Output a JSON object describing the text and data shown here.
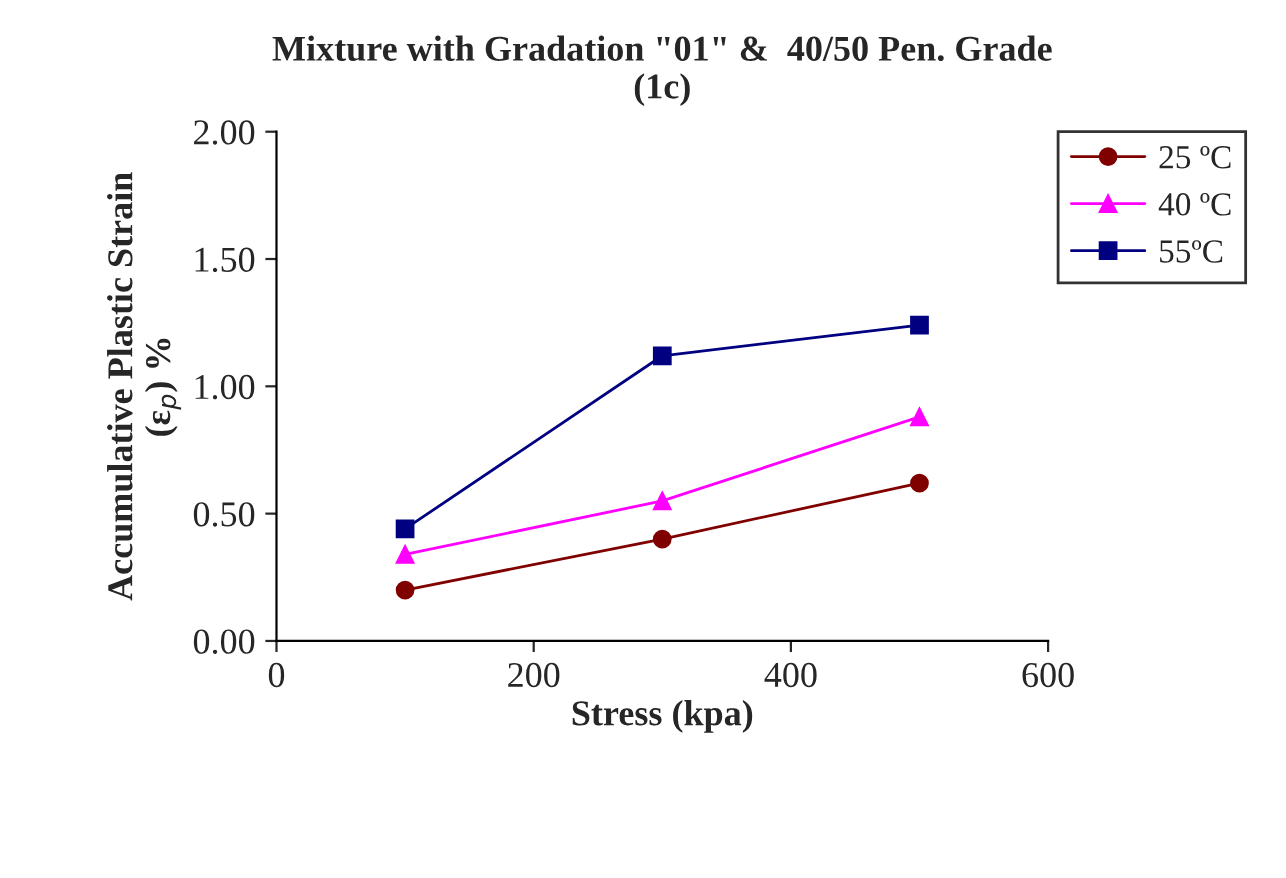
{
  "chart_data": {
    "type": "line",
    "title": "Mixture with Gradation \"01\" &  40/50 Pen. Grade\n(1c)",
    "xlabel": "Stress (kpa)",
    "ylabel": "Accumulative Plastic Strain\n(ε$_{p}$) %",
    "xlim": [
      0,
      600
    ],
    "xticks": [
      0,
      200,
      400,
      600
    ],
    "ylim": [
      0,
      2
    ],
    "yticks": [
      {
        "value": 0,
        "label": "0.00"
      },
      {
        "value": 0.5,
        "label": "0.50"
      },
      {
        "value": 1,
        "label": "1.00"
      },
      {
        "value": 1.5,
        "label": "1.50"
      },
      {
        "value": 2,
        "label": "2.00"
      }
    ],
    "grid": false,
    "legend": "top right",
    "series": [
      {
        "name": "25 ºC",
        "color": "#800000",
        "marker": "circle",
        "x": [
          100,
          300,
          500
        ],
        "values": [
          0.2,
          0.4,
          0.62
        ]
      },
      {
        "name": "40 ºC",
        "color": "#ff00ff",
        "marker": "triangle",
        "x": [
          100,
          300,
          500
        ],
        "values": [
          0.34,
          0.55,
          0.88
        ]
      },
      {
        "name": "55ºC",
        "color": "#000080",
        "marker": "square",
        "x": [
          100,
          300,
          500
        ],
        "values": [
          0.44,
          1.12,
          1.24
        ]
      }
    ]
  }
}
